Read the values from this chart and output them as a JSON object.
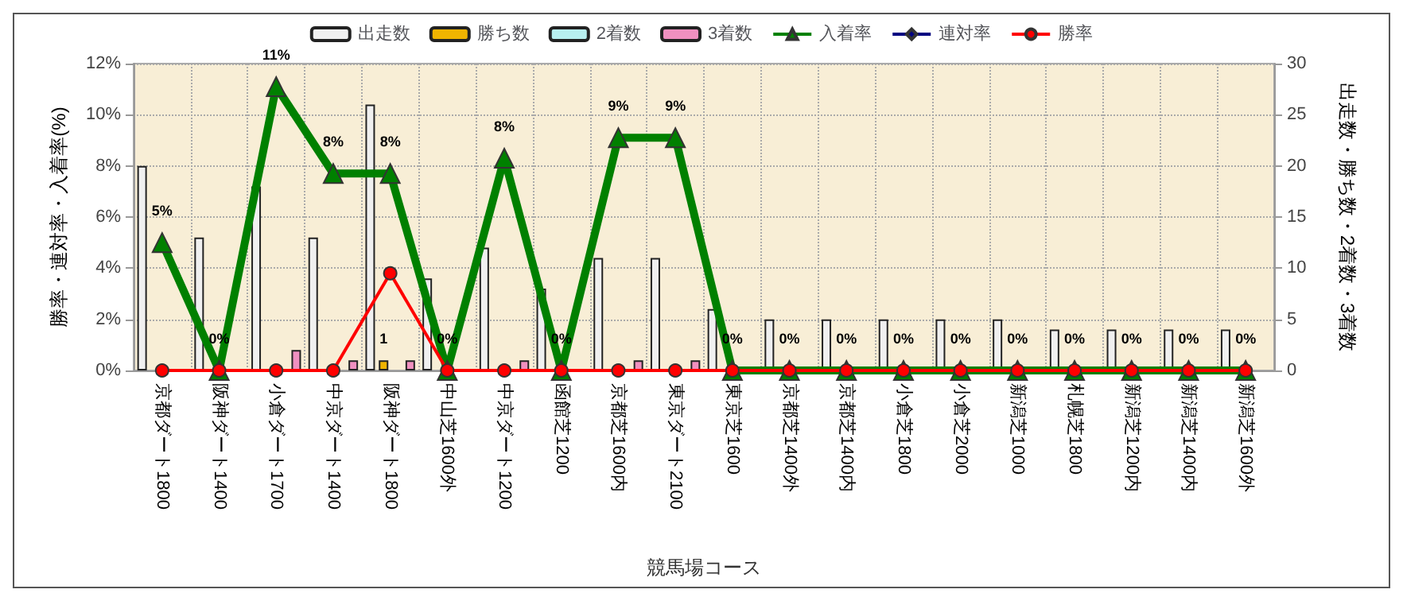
{
  "chart_data": {
    "type": "bar",
    "xlabel": "競馬場コース",
    "ylabel": "勝率・連対率・入着率(%)",
    "y2label": "出走数・勝ち数・2着数・3着数",
    "categories": [
      "京都ダート1800",
      "阪神ダート1400",
      "小倉ダート1700",
      "中京ダート1400",
      "阪神ダート1800",
      "中山芝1600外",
      "中京ダート1200",
      "函館芝1200",
      "京都芝1600内",
      "東京ダート2100",
      "東京芝1600",
      "京都芝1400外",
      "京都芝1400内",
      "小倉芝1800",
      "小倉芝2000",
      "新潟芝1000",
      "札幌芝1800",
      "新潟芝1200内",
      "新潟芝1400内",
      "新潟芝1600外"
    ],
    "series": [
      {
        "name": "出走数",
        "axis": "y2",
        "color": "#f0f0f0",
        "values": [
          20,
          13,
          18,
          13,
          26,
          9,
          12,
          8,
          11,
          11,
          6,
          5,
          5,
          5,
          5,
          5,
          4,
          4,
          4,
          4
        ]
      },
      {
        "name": "勝ち数",
        "axis": "y2",
        "color": "#f0b400",
        "values": [
          0,
          0,
          0,
          0,
          1,
          0,
          0,
          0,
          0,
          0,
          0,
          0,
          0,
          0,
          0,
          0,
          0,
          0,
          0,
          0
        ],
        "value_labels": [
          null,
          null,
          null,
          null,
          "1",
          null,
          null,
          null,
          null,
          null,
          null,
          null,
          null,
          null,
          null,
          null,
          null,
          null,
          null,
          null
        ]
      },
      {
        "name": "2着数",
        "axis": "y2",
        "color": "#b8f0f0",
        "values": [
          0,
          0,
          0,
          0,
          0,
          0,
          0,
          0,
          0,
          0,
          0,
          0,
          0,
          0,
          0,
          0,
          0,
          0,
          0,
          0
        ]
      },
      {
        "name": "3着数",
        "axis": "y2",
        "color": "#f090c0",
        "values": [
          0,
          0,
          2,
          1,
          1,
          0,
          1,
          0,
          1,
          1,
          0,
          0,
          0,
          0,
          0,
          0,
          0,
          0,
          0,
          0
        ]
      },
      {
        "name": "入着率",
        "type": "line",
        "marker": "triangle",
        "color": "#008000",
        "values": [
          5,
          0,
          11.1,
          7.7,
          7.7,
          0,
          8.3,
          0,
          9.1,
          9.1,
          0,
          0,
          0,
          0,
          0,
          0,
          0,
          0,
          0,
          0
        ],
        "value_labels": [
          "5%",
          "0%",
          "11%",
          "8%",
          "8%",
          "0%",
          "8%",
          "0%",
          "9%",
          "9%",
          "0%",
          "0%",
          "0%",
          "0%",
          "0%",
          "0%",
          "0%",
          "0%",
          "0%",
          "0%"
        ]
      },
      {
        "name": "連対率",
        "type": "line",
        "marker": "diamond",
        "color": "#000080",
        "values": [
          null,
          null,
          null,
          null,
          null,
          null,
          null,
          null,
          null,
          null,
          null,
          null,
          null,
          null,
          null,
          null,
          null,
          null,
          null,
          null
        ]
      },
      {
        "name": "勝率",
        "type": "line",
        "marker": "circle",
        "color": "#ff0000",
        "values": [
          0,
          0,
          0,
          0,
          3.8,
          0,
          0,
          0,
          0,
          0,
          0,
          0,
          0,
          0,
          0,
          0,
          0,
          0,
          0,
          0
        ]
      }
    ],
    "ylim": [
      0,
      12
    ],
    "yticks": [
      {
        "value": 0,
        "label": "0%"
      },
      {
        "value": 2,
        "label": "2%"
      },
      {
        "value": 4,
        "label": "4%"
      },
      {
        "value": 6,
        "label": "6%"
      },
      {
        "value": 8,
        "label": "8%"
      },
      {
        "value": 10,
        "label": "10%"
      },
      {
        "value": 12,
        "label": "12%"
      }
    ],
    "y2lim": [
      0,
      30
    ],
    "y2ticks": [
      0,
      5,
      10,
      15,
      20,
      25,
      30
    ],
    "grid": true,
    "legend": "top"
  }
}
